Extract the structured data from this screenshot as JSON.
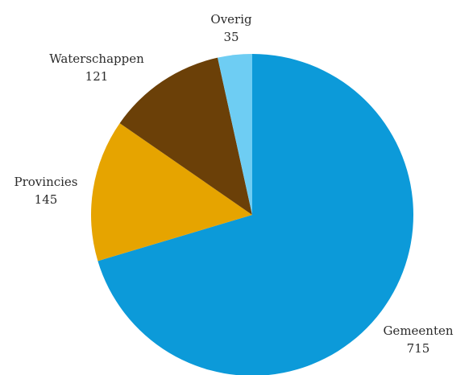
{
  "chart_data": {
    "type": "pie",
    "title": "",
    "start_angle_deg": 0,
    "direction": "clockwise",
    "slices": [
      {
        "label": "Gemeenten",
        "value": 715,
        "value_label": "715",
        "color": "#0c9ad9"
      },
      {
        "label": "Provincies",
        "value": 145,
        "value_label": "145",
        "color": "#e6a400"
      },
      {
        "label": "Waterschappen",
        "value": 121,
        "value_label": "121",
        "color": "#6b4008"
      },
      {
        "label": "Overig",
        "value": 35,
        "value_label": "35",
        "color": "#6ecdf3"
      }
    ]
  }
}
